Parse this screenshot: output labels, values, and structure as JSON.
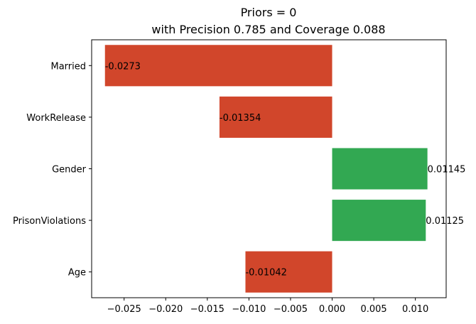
{
  "chart_data": {
    "type": "bar",
    "orientation": "horizontal",
    "title": "Priors = 0",
    "subtitle": "with Precision 0.785 and Coverage 0.088",
    "xlabel": "",
    "ylabel": "",
    "categories": [
      "Married",
      "WorkRelease",
      "Gender",
      "PrisonViolations",
      "Age"
    ],
    "values": [
      -0.0273,
      -0.01354,
      0.01145,
      0.01125,
      -0.01042
    ],
    "value_labels": [
      "-0.0273",
      "-0.01354",
      "0.01145",
      "0.01125",
      "-0.01042"
    ],
    "xlim": [
      -0.0289,
      0.0137
    ],
    "xticks": [
      -0.025,
      -0.02,
      -0.015,
      -0.01,
      -0.005,
      0.0,
      0.005,
      0.01
    ],
    "xtick_labels": [
      "−0.025",
      "−0.020",
      "−0.015",
      "−0.010",
      "−0.005",
      "0.000",
      "0.005",
      "0.010"
    ],
    "grid": false,
    "colors": {
      "negative": "#d1462b",
      "positive": "#32a852"
    }
  }
}
